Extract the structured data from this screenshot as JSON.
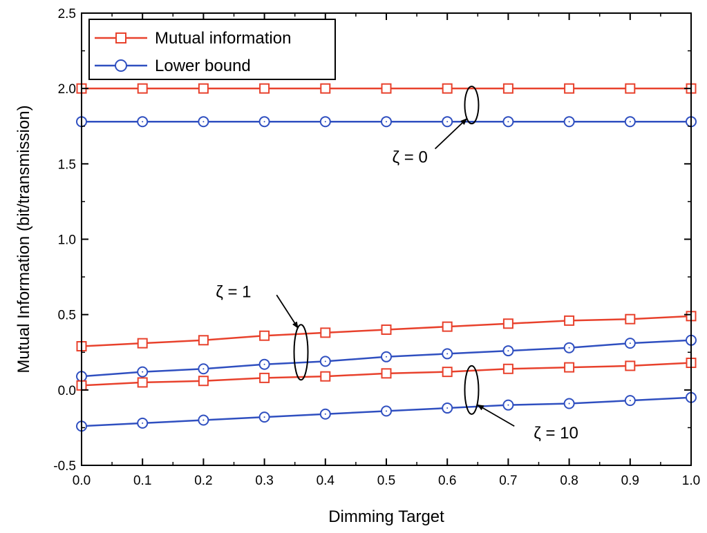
{
  "chart_data": {
    "type": "line",
    "xlabel": "Dimming Target",
    "ylabel": "Mutual Information (bit/transmission)",
    "xlim": [
      0.0,
      1.0
    ],
    "ylim": [
      -0.5,
      2.5
    ],
    "xticks": [
      "0.0",
      "0.1",
      "0.2",
      "0.3",
      "0.4",
      "0.5",
      "0.6",
      "0.7",
      "0.8",
      "0.9",
      "1.0"
    ],
    "yticks": [
      "-0.5",
      "0.0",
      "0.5",
      "1.0",
      "1.5",
      "2.0",
      "2.5"
    ],
    "legend_position": "top-left",
    "legend": [
      {
        "label": "Mutual information",
        "color": "#e8412c",
        "marker": "square"
      },
      {
        "label": "Lower bound",
        "color": "#2f4fc0",
        "marker": "circle"
      }
    ],
    "x": [
      0.0,
      0.1,
      0.2,
      0.3,
      0.4,
      0.5,
      0.6,
      0.7,
      0.8,
      0.9,
      1.0
    ],
    "series": [
      {
        "group": "ζ = 0",
        "kind": "Mutual information",
        "color": "#e8412c",
        "marker": "square",
        "values": [
          2.0,
          2.0,
          2.0,
          2.0,
          2.0,
          2.0,
          2.0,
          2.0,
          2.0,
          2.0,
          2.0
        ]
      },
      {
        "group": "ζ = 0",
        "kind": "Lower bound",
        "color": "#2f4fc0",
        "marker": "circle",
        "values": [
          1.78,
          1.78,
          1.78,
          1.78,
          1.78,
          1.78,
          1.78,
          1.78,
          1.78,
          1.78,
          1.78
        ]
      },
      {
        "group": "ζ = 1",
        "kind": "Mutual information",
        "color": "#e8412c",
        "marker": "square",
        "values": [
          0.29,
          0.31,
          0.33,
          0.36,
          0.38,
          0.4,
          0.42,
          0.44,
          0.46,
          0.47,
          0.49
        ]
      },
      {
        "group": "ζ = 1",
        "kind": "Lower bound",
        "color": "#2f4fc0",
        "marker": "circle",
        "values": [
          0.09,
          0.12,
          0.14,
          0.17,
          0.19,
          0.22,
          0.24,
          0.26,
          0.28,
          0.31,
          0.33
        ]
      },
      {
        "group": "ζ = 10",
        "kind": "Mutual information",
        "color": "#e8412c",
        "marker": "square",
        "values": [
          0.03,
          0.05,
          0.06,
          0.08,
          0.09,
          0.11,
          0.12,
          0.14,
          0.15,
          0.16,
          0.18
        ]
      },
      {
        "group": "ζ = 10",
        "kind": "Lower bound",
        "color": "#2f4fc0",
        "marker": "circle",
        "values": [
          -0.24,
          -0.22,
          -0.2,
          -0.18,
          -0.16,
          -0.14,
          -0.12,
          -0.1,
          -0.09,
          -0.07,
          -0.05
        ]
      }
    ],
    "annotations": [
      {
        "text": "ζ = 0",
        "ellipse_center": [
          0.64,
          1.89
        ],
        "arrow_tail": [
          0.58,
          1.6
        ]
      },
      {
        "text": "ζ = 1",
        "ellipse_center": [
          0.36,
          0.25
        ],
        "arrow_tail": [
          0.32,
          0.63
        ]
      },
      {
        "text": "ζ = 10",
        "ellipse_center": [
          0.64,
          0.0
        ],
        "arrow_tail": [
          0.71,
          -0.24
        ]
      }
    ]
  }
}
